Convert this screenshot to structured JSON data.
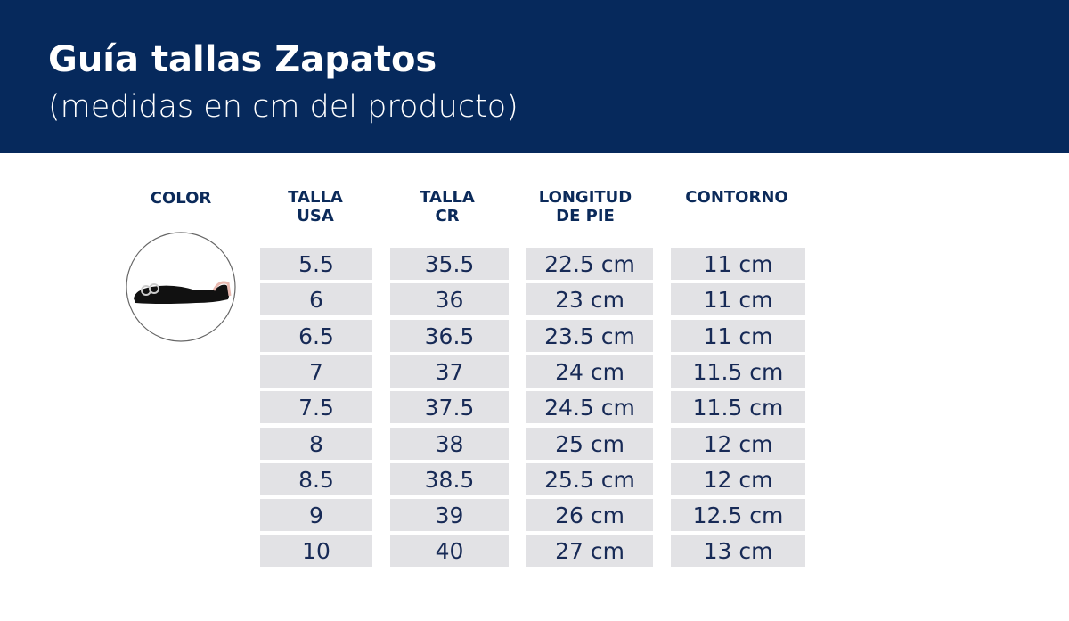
{
  "header": {
    "title": "Guía tallas Zapatos",
    "subtitle": "(medidas en cm del producto)"
  },
  "table": {
    "columns": [
      [
        "COLOR"
      ],
      [
        "TALLA",
        "USA"
      ],
      [
        "TALLA",
        "CR"
      ],
      [
        "LONGITUD",
        "DE PIE"
      ],
      [
        "CONTORNO"
      ]
    ],
    "rows": [
      [
        "5.5",
        "35.5",
        "22.5 cm",
        "11 cm"
      ],
      [
        "6",
        "36",
        "23 cm",
        "11 cm"
      ],
      [
        "6.5",
        "36.5",
        "23.5 cm",
        "11 cm"
      ],
      [
        "7",
        "37",
        "24 cm",
        "11.5 cm"
      ],
      [
        "7.5",
        "37.5",
        "24.5 cm",
        "11.5 cm"
      ],
      [
        "8",
        "38",
        "25 cm",
        "12 cm"
      ],
      [
        "8.5",
        "38.5",
        "25.5 cm",
        "12 cm"
      ],
      [
        "9",
        "39",
        "26 cm",
        "12.5 cm"
      ],
      [
        "10",
        "40",
        "27 cm",
        "13 cm"
      ]
    ]
  }
}
